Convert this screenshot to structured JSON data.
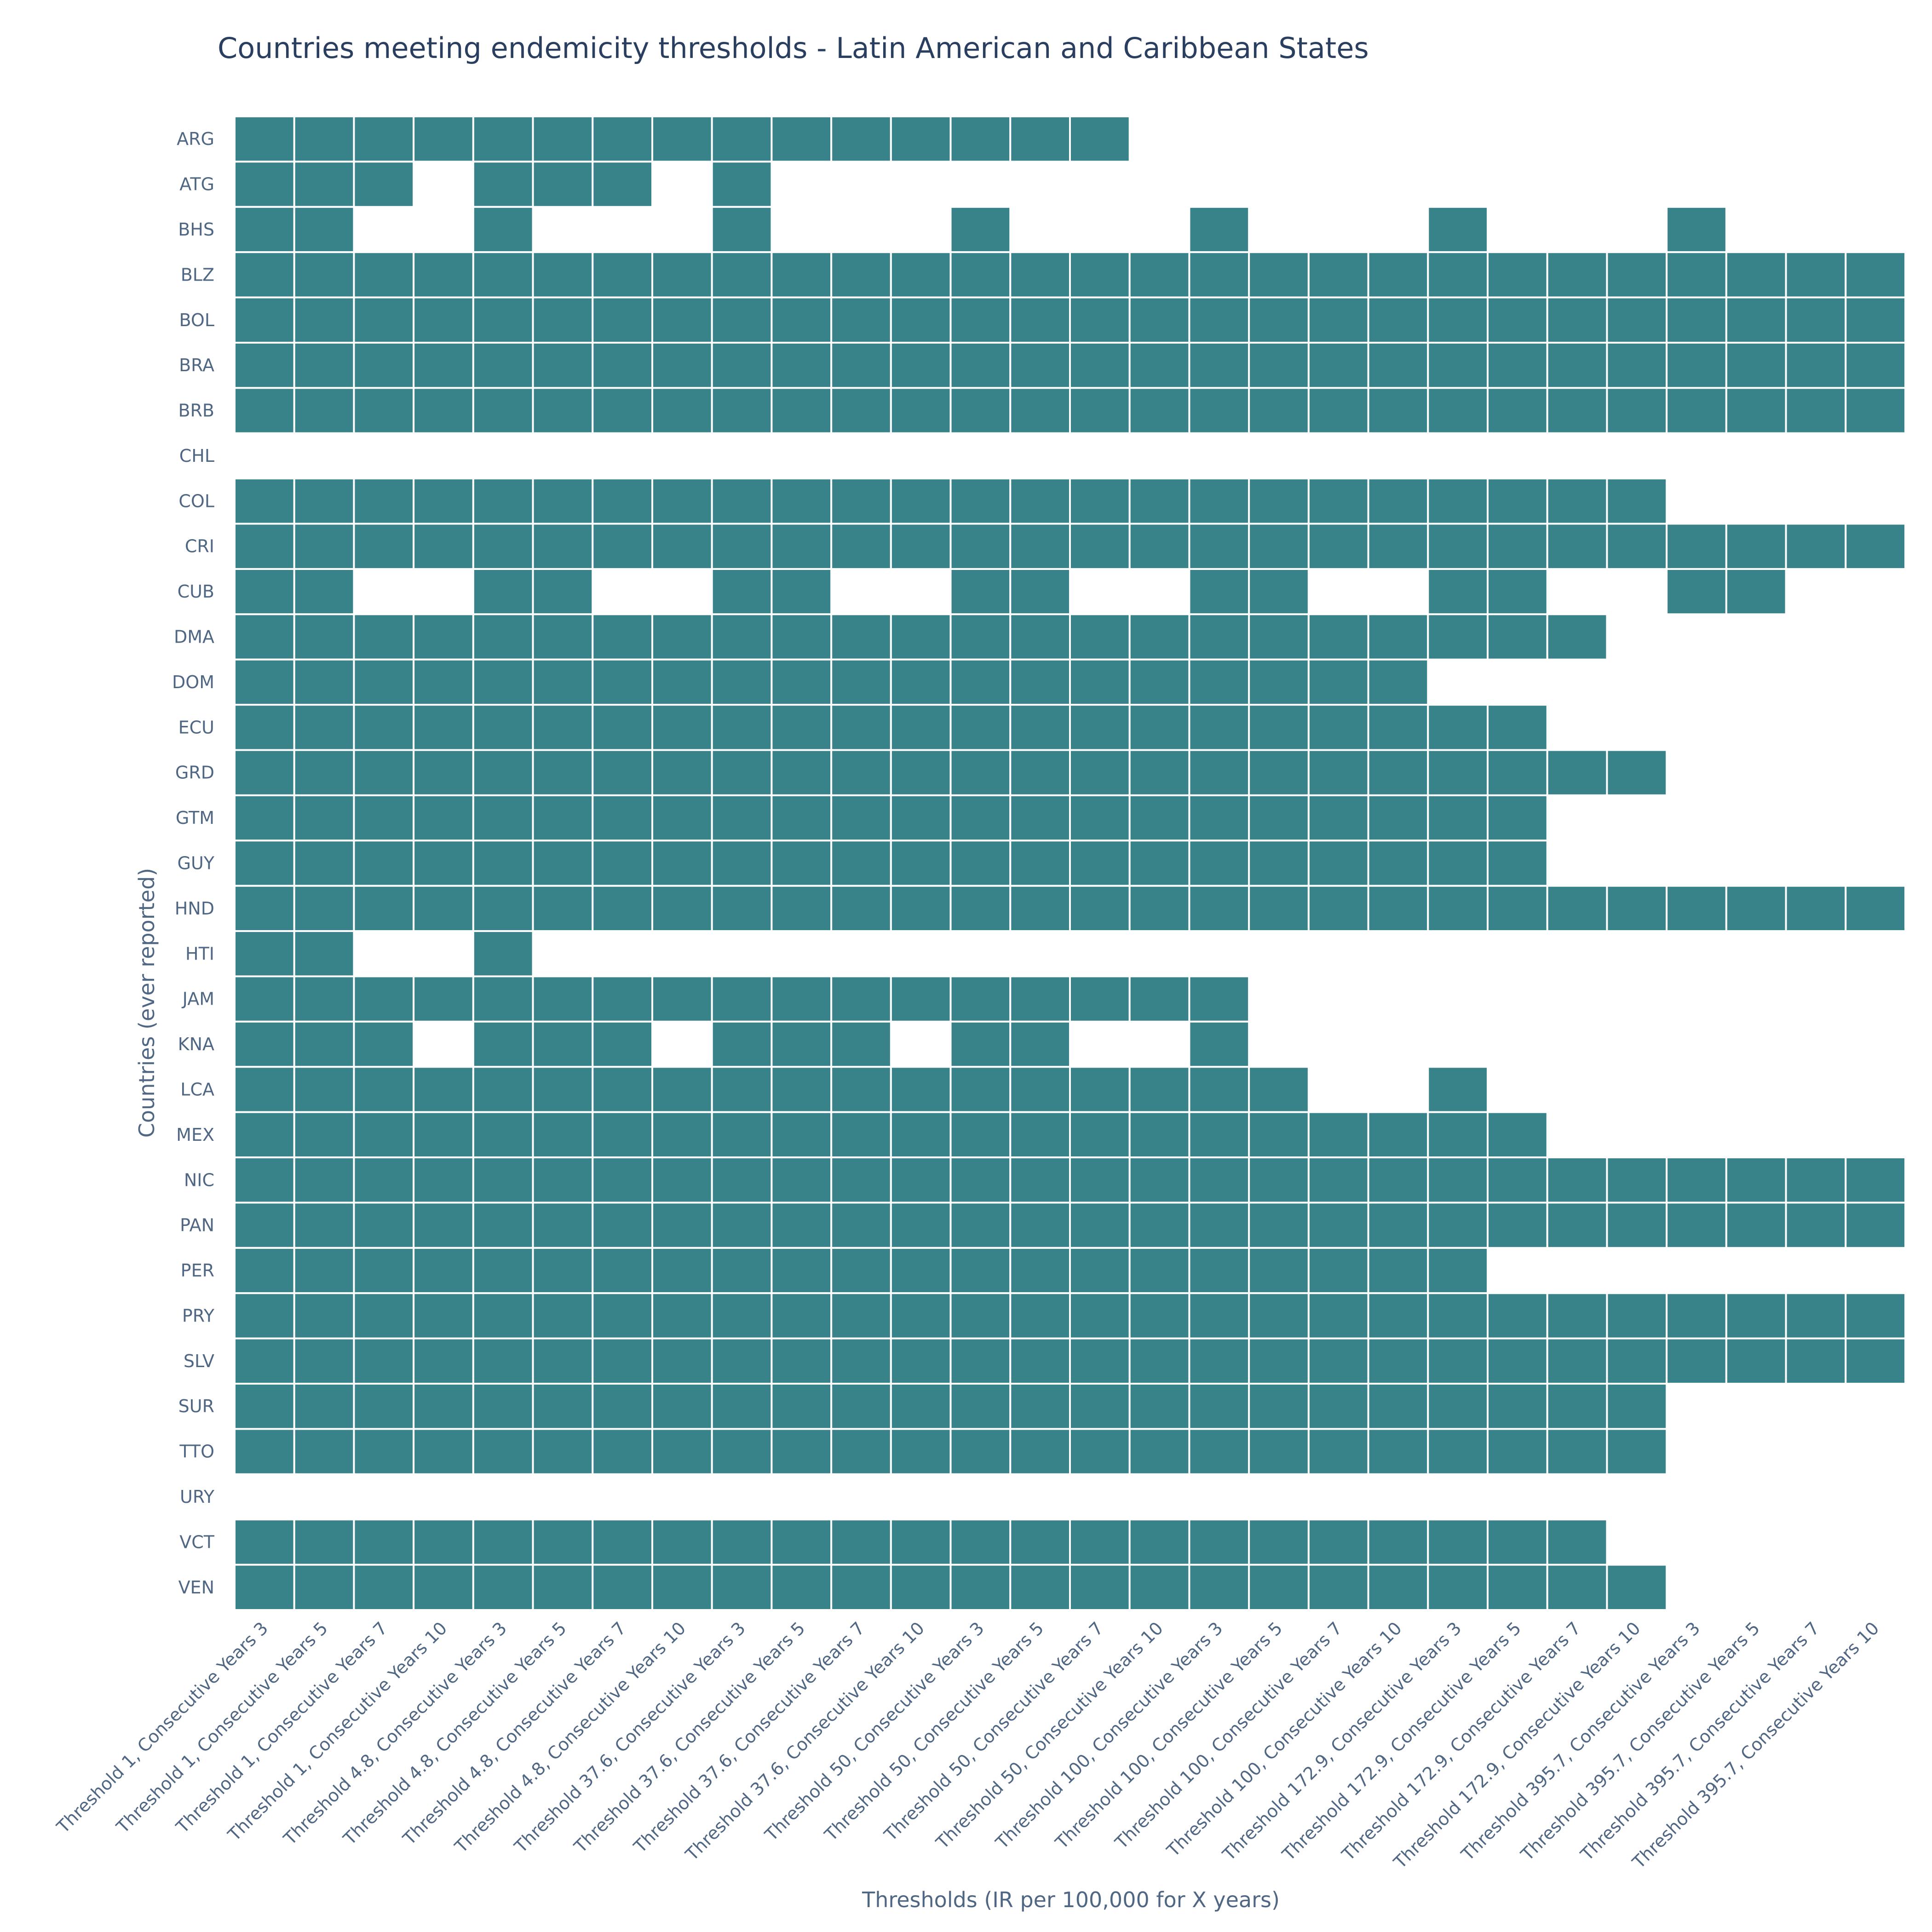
{
  "chart_data": {
    "type": "heatmap",
    "title": "Countries meeting endemicity thresholds - Latin American and Caribbean States",
    "xlabel": "Thresholds (IR per 100,000 for X years)",
    "ylabel": "Countries (ever reported)",
    "cell_color": "#38828a",
    "background_color": "#ffffff",
    "grid_color": "#ffffff",
    "x": [
      "Threshold 1, Consecutive Years 3",
      "Threshold 1, Consecutive Years 5",
      "Threshold 1, Consecutive Years 7",
      "Threshold 1, Consecutive Years 10",
      "Threshold 4.8, Consecutive Years 3",
      "Threshold 4.8, Consecutive Years 5",
      "Threshold 4.8, Consecutive Years 7",
      "Threshold 4.8, Consecutive Years 10",
      "Threshold 37.6, Consecutive Years 3",
      "Threshold 37.6, Consecutive Years 5",
      "Threshold 37.6, Consecutive Years 7",
      "Threshold 37.6, Consecutive Years 10",
      "Threshold 50, Consecutive Years 3",
      "Threshold 50, Consecutive Years 5",
      "Threshold 50, Consecutive Years 7",
      "Threshold 50, Consecutive Years 10",
      "Threshold 100, Consecutive Years 3",
      "Threshold 100, Consecutive Years 5",
      "Threshold 100, Consecutive Years 7",
      "Threshold 100, Consecutive Years 10",
      "Threshold 172.9, Consecutive Years 3",
      "Threshold 172.9, Consecutive Years 5",
      "Threshold 172.9, Consecutive Years 7",
      "Threshold 172.9, Consecutive Years 10",
      "Threshold 395.7, Consecutive Years 3",
      "Threshold 395.7, Consecutive Years 5",
      "Threshold 395.7, Consecutive Years 7",
      "Threshold 395.7, Consecutive Years 10"
    ],
    "y": [
      "ARG",
      "ATG",
      "BHS",
      "BLZ",
      "BOL",
      "BRA",
      "BRB",
      "CHL",
      "COL",
      "CRI",
      "CUB",
      "DMA",
      "DOM",
      "ECU",
      "GRD",
      "GTM",
      "GUY",
      "HND",
      "HTI",
      "JAM",
      "KNA",
      "LCA",
      "MEX",
      "NIC",
      "PAN",
      "PER",
      "PRY",
      "SLV",
      "SUR",
      "TTO",
      "URY",
      "VCT",
      "VEN"
    ],
    "z": [
      [
        1,
        1,
        1,
        1,
        1,
        1,
        1,
        1,
        1,
        1,
        1,
        1,
        1,
        1,
        1,
        0,
        0,
        0,
        0,
        0,
        0,
        0,
        0,
        0,
        0,
        0,
        0,
        0
      ],
      [
        1,
        1,
        1,
        0,
        1,
        1,
        1,
        0,
        1,
        0,
        0,
        0,
        0,
        0,
        0,
        0,
        0,
        0,
        0,
        0,
        0,
        0,
        0,
        0,
        0,
        0,
        0,
        0
      ],
      [
        1,
        1,
        0,
        0,
        1,
        0,
        0,
        0,
        1,
        0,
        0,
        0,
        1,
        0,
        0,
        0,
        1,
        0,
        0,
        0,
        1,
        0,
        0,
        0,
        1,
        0,
        0,
        0
      ],
      [
        1,
        1,
        1,
        1,
        1,
        1,
        1,
        1,
        1,
        1,
        1,
        1,
        1,
        1,
        1,
        1,
        1,
        1,
        1,
        1,
        1,
        1,
        1,
        1,
        1,
        1,
        1,
        1
      ],
      [
        1,
        1,
        1,
        1,
        1,
        1,
        1,
        1,
        1,
        1,
        1,
        1,
        1,
        1,
        1,
        1,
        1,
        1,
        1,
        1,
        1,
        1,
        1,
        1,
        1,
        1,
        1,
        1
      ],
      [
        1,
        1,
        1,
        1,
        1,
        1,
        1,
        1,
        1,
        1,
        1,
        1,
        1,
        1,
        1,
        1,
        1,
        1,
        1,
        1,
        1,
        1,
        1,
        1,
        1,
        1,
        1,
        1
      ],
      [
        1,
        1,
        1,
        1,
        1,
        1,
        1,
        1,
        1,
        1,
        1,
        1,
        1,
        1,
        1,
        1,
        1,
        1,
        1,
        1,
        1,
        1,
        1,
        1,
        1,
        1,
        1,
        1
      ],
      [
        0,
        0,
        0,
        0,
        0,
        0,
        0,
        0,
        0,
        0,
        0,
        0,
        0,
        0,
        0,
        0,
        0,
        0,
        0,
        0,
        0,
        0,
        0,
        0,
        0,
        0,
        0,
        0
      ],
      [
        1,
        1,
        1,
        1,
        1,
        1,
        1,
        1,
        1,
        1,
        1,
        1,
        1,
        1,
        1,
        1,
        1,
        1,
        1,
        1,
        1,
        1,
        1,
        1,
        0,
        0,
        0,
        0
      ],
      [
        1,
        1,
        1,
        1,
        1,
        1,
        1,
        1,
        1,
        1,
        1,
        1,
        1,
        1,
        1,
        1,
        1,
        1,
        1,
        1,
        1,
        1,
        1,
        1,
        1,
        1,
        1,
        1
      ],
      [
        1,
        1,
        0,
        0,
        1,
        1,
        0,
        0,
        1,
        1,
        0,
        0,
        1,
        1,
        0,
        0,
        1,
        1,
        0,
        0,
        1,
        1,
        0,
        0,
        1,
        1,
        0,
        0
      ],
      [
        1,
        1,
        1,
        1,
        1,
        1,
        1,
        1,
        1,
        1,
        1,
        1,
        1,
        1,
        1,
        1,
        1,
        1,
        1,
        1,
        1,
        1,
        1,
        0,
        0,
        0,
        0,
        0
      ],
      [
        1,
        1,
        1,
        1,
        1,
        1,
        1,
        1,
        1,
        1,
        1,
        1,
        1,
        1,
        1,
        1,
        1,
        1,
        1,
        1,
        0,
        0,
        0,
        0,
        0,
        0,
        0,
        0
      ],
      [
        1,
        1,
        1,
        1,
        1,
        1,
        1,
        1,
        1,
        1,
        1,
        1,
        1,
        1,
        1,
        1,
        1,
        1,
        1,
        1,
        1,
        1,
        0,
        0,
        0,
        0,
        0,
        0
      ],
      [
        1,
        1,
        1,
        1,
        1,
        1,
        1,
        1,
        1,
        1,
        1,
        1,
        1,
        1,
        1,
        1,
        1,
        1,
        1,
        1,
        1,
        1,
        1,
        1,
        0,
        0,
        0,
        0
      ],
      [
        1,
        1,
        1,
        1,
        1,
        1,
        1,
        1,
        1,
        1,
        1,
        1,
        1,
        1,
        1,
        1,
        1,
        1,
        1,
        1,
        1,
        1,
        0,
        0,
        0,
        0,
        0,
        0
      ],
      [
        1,
        1,
        1,
        1,
        1,
        1,
        1,
        1,
        1,
        1,
        1,
        1,
        1,
        1,
        1,
        1,
        1,
        1,
        1,
        1,
        1,
        1,
        0,
        0,
        0,
        0,
        0,
        0
      ],
      [
        1,
        1,
        1,
        1,
        1,
        1,
        1,
        1,
        1,
        1,
        1,
        1,
        1,
        1,
        1,
        1,
        1,
        1,
        1,
        1,
        1,
        1,
        1,
        1,
        1,
        1,
        1,
        1
      ],
      [
        1,
        1,
        0,
        0,
        1,
        0,
        0,
        0,
        0,
        0,
        0,
        0,
        0,
        0,
        0,
        0,
        0,
        0,
        0,
        0,
        0,
        0,
        0,
        0,
        0,
        0,
        0,
        0
      ],
      [
        1,
        1,
        1,
        1,
        1,
        1,
        1,
        1,
        1,
        1,
        1,
        1,
        1,
        1,
        1,
        1,
        1,
        0,
        0,
        0,
        0,
        0,
        0,
        0,
        0,
        0,
        0,
        0
      ],
      [
        1,
        1,
        1,
        0,
        1,
        1,
        1,
        0,
        1,
        1,
        1,
        0,
        1,
        1,
        0,
        0,
        1,
        0,
        0,
        0,
        0,
        0,
        0,
        0,
        0,
        0,
        0,
        0
      ],
      [
        1,
        1,
        1,
        1,
        1,
        1,
        1,
        1,
        1,
        1,
        1,
        1,
        1,
        1,
        1,
        1,
        1,
        1,
        0,
        0,
        1,
        0,
        0,
        0,
        0,
        0,
        0,
        0
      ],
      [
        1,
        1,
        1,
        1,
        1,
        1,
        1,
        1,
        1,
        1,
        1,
        1,
        1,
        1,
        1,
        1,
        1,
        1,
        1,
        1,
        1,
        1,
        0,
        0,
        0,
        0,
        0,
        0
      ],
      [
        1,
        1,
        1,
        1,
        1,
        1,
        1,
        1,
        1,
        1,
        1,
        1,
        1,
        1,
        1,
        1,
        1,
        1,
        1,
        1,
        1,
        1,
        1,
        1,
        1,
        1,
        1,
        1
      ],
      [
        1,
        1,
        1,
        1,
        1,
        1,
        1,
        1,
        1,
        1,
        1,
        1,
        1,
        1,
        1,
        1,
        1,
        1,
        1,
        1,
        1,
        1,
        1,
        1,
        1,
        1,
        1,
        1
      ],
      [
        1,
        1,
        1,
        1,
        1,
        1,
        1,
        1,
        1,
        1,
        1,
        1,
        1,
        1,
        1,
        1,
        1,
        1,
        1,
        1,
        1,
        0,
        0,
        0,
        0,
        0,
        0,
        0
      ],
      [
        1,
        1,
        1,
        1,
        1,
        1,
        1,
        1,
        1,
        1,
        1,
        1,
        1,
        1,
        1,
        1,
        1,
        1,
        1,
        1,
        1,
        1,
        1,
        1,
        1,
        1,
        1,
        1
      ],
      [
        1,
        1,
        1,
        1,
        1,
        1,
        1,
        1,
        1,
        1,
        1,
        1,
        1,
        1,
        1,
        1,
        1,
        1,
        1,
        1,
        1,
        1,
        1,
        1,
        1,
        1,
        1,
        1
      ],
      [
        1,
        1,
        1,
        1,
        1,
        1,
        1,
        1,
        1,
        1,
        1,
        1,
        1,
        1,
        1,
        1,
        1,
        1,
        1,
        1,
        1,
        1,
        1,
        1,
        0,
        0,
        0,
        0
      ],
      [
        1,
        1,
        1,
        1,
        1,
        1,
        1,
        1,
        1,
        1,
        1,
        1,
        1,
        1,
        1,
        1,
        1,
        1,
        1,
        1,
        1,
        1,
        1,
        1,
        0,
        0,
        0,
        0
      ],
      [
        0,
        0,
        0,
        0,
        0,
        0,
        0,
        0,
        0,
        0,
        0,
        0,
        0,
        0,
        0,
        0,
        0,
        0,
        0,
        0,
        0,
        0,
        0,
        0,
        0,
        0,
        0,
        0
      ],
      [
        1,
        1,
        1,
        1,
        1,
        1,
        1,
        1,
        1,
        1,
        1,
        1,
        1,
        1,
        1,
        1,
        1,
        1,
        1,
        1,
        1,
        1,
        1,
        0,
        0,
        0,
        0,
        0
      ],
      [
        1,
        1,
        1,
        1,
        1,
        1,
        1,
        1,
        1,
        1,
        1,
        1,
        1,
        1,
        1,
        1,
        1,
        1,
        1,
        1,
        1,
        1,
        1,
        1,
        0,
        0,
        0,
        0
      ]
    ]
  }
}
